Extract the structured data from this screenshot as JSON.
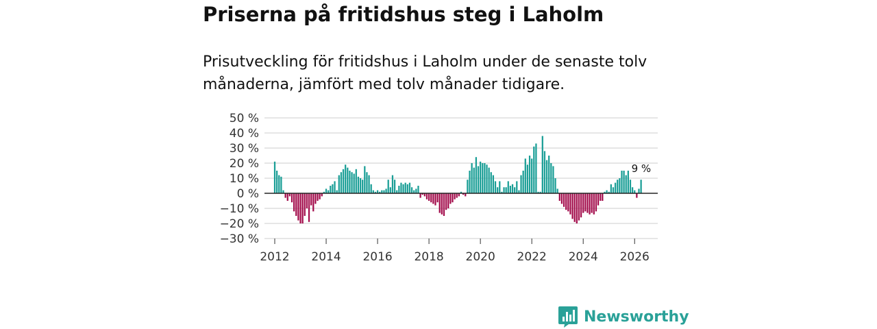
{
  "header": {
    "title": "Priserna på fritidshus steg i Laholm",
    "subtitle": "Prisutveckling för fritidshus i Laholm under de senaste tolv månaderna, jämfört med tolv månader tidigare."
  },
  "brand": {
    "name": "Newsworthy",
    "icon": "newsworthy-logo-icon"
  },
  "colors": {
    "positive": "#1a9e96",
    "negative": "#a30d4c",
    "grid": "#dddddd",
    "zero_line": "#222222"
  },
  "chart_data": {
    "type": "bar",
    "title": "Priserna på fritidshus steg i Laholm",
    "xlabel": "",
    "ylabel": "",
    "ylim": [
      -30,
      50
    ],
    "xlim": [
      2011.6,
      2026.9
    ],
    "y_ticks": [
      50,
      40,
      30,
      20,
      10,
      0,
      -10,
      -20,
      -30
    ],
    "y_tick_labels": [
      "50 %",
      "40 %",
      "30 %",
      "20 %",
      "10 %",
      "0 %",
      "−10 %",
      "−20 %",
      "−30 %"
    ],
    "x_ticks": [
      2012,
      2014,
      2016,
      2018,
      2020,
      2022,
      2024,
      2026
    ],
    "x_tick_labels": [
      "2012",
      "2014",
      "2016",
      "2018",
      "2020",
      "2022",
      "2024",
      "2026"
    ],
    "grid": true,
    "start_year": 2012,
    "start_month": 1,
    "values": [
      21,
      15,
      12,
      11,
      2,
      -3,
      -5,
      -2,
      -6,
      -12,
      -15,
      -18,
      -20,
      -20,
      -15,
      -10,
      -19,
      -8,
      -12,
      -7,
      -5,
      -4,
      -2,
      1,
      3,
      2,
      5,
      6,
      8,
      2,
      12,
      14,
      16,
      19,
      17,
      15,
      14,
      13,
      16,
      11,
      10,
      9,
      18,
      14,
      12,
      6,
      2,
      1,
      2,
      1,
      2,
      2,
      3,
      9,
      4,
      12,
      9,
      2,
      5,
      7,
      6,
      7,
      6,
      7,
      4,
      2,
      3,
      5,
      -3,
      -1,
      -2,
      -4,
      -5,
      -6,
      -7,
      -8,
      -6,
      -13,
      -14,
      -15,
      -11,
      -10,
      -7,
      -6,
      -4,
      -3,
      -2,
      1,
      -1,
      -2,
      9,
      15,
      20,
      17,
      24,
      18,
      21,
      20,
      20,
      19,
      17,
      14,
      12,
      8,
      4,
      8,
      1,
      4,
      4,
      8,
      5,
      6,
      4,
      8,
      2,
      12,
      15,
      23,
      19,
      25,
      23,
      31,
      33,
      1,
      1,
      38,
      28,
      22,
      25,
      20,
      18,
      10,
      3,
      -5,
      -7,
      -9,
      -11,
      -12,
      -14,
      -17,
      -19,
      -20,
      -18,
      -16,
      -13,
      -12,
      -13,
      -14,
      -13,
      -14,
      -12,
      -8,
      -5,
      -5,
      1,
      2,
      1,
      6,
      4,
      7,
      9,
      10,
      15,
      15,
      12,
      15,
      9,
      4,
      2,
      -3,
      3,
      9
    ],
    "annotation": {
      "text": "9 %",
      "value": 9,
      "target": "last"
    }
  }
}
